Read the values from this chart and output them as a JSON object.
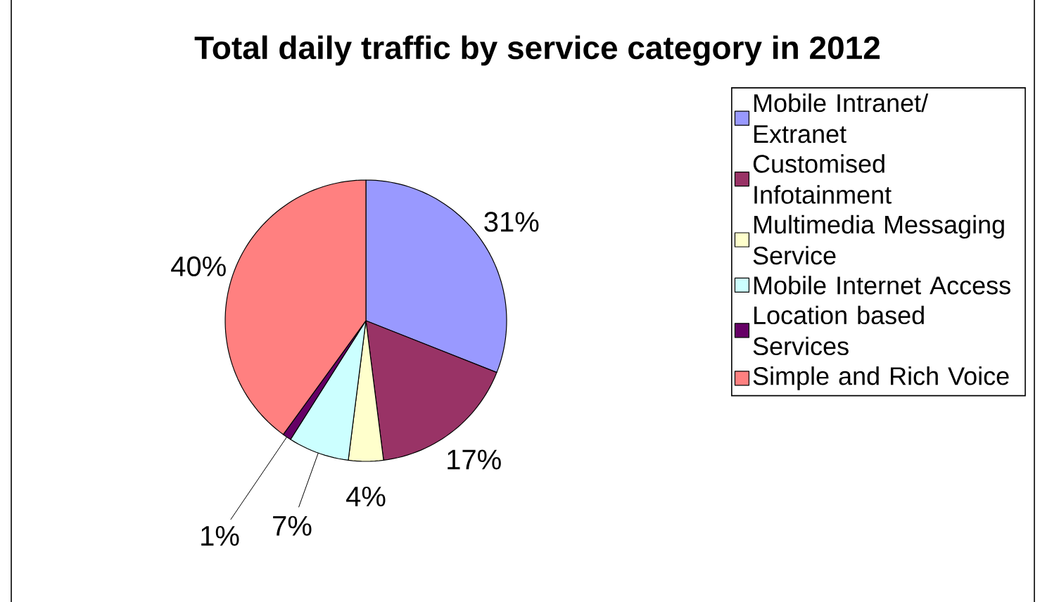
{
  "chart_data": {
    "type": "pie",
    "title": "Total daily traffic by service category in 2012",
    "categories": [
      "Mobile Intranet/ Extranet",
      "Customised Infotainment",
      "Multimedia Messaging Service",
      "Mobile Internet Access",
      "Location based Services",
      "Simple and Rich Voice"
    ],
    "values": [
      31,
      17,
      4,
      7,
      1,
      40
    ],
    "colors": [
      "#9999ff",
      "#993366",
      "#ffffcc",
      "#ccffff",
      "#660066",
      "#ff8080"
    ],
    "value_labels": [
      "31%",
      "17%",
      "4%",
      "7%",
      "1%",
      "40%"
    ],
    "data_labels": true,
    "legend": "right"
  }
}
